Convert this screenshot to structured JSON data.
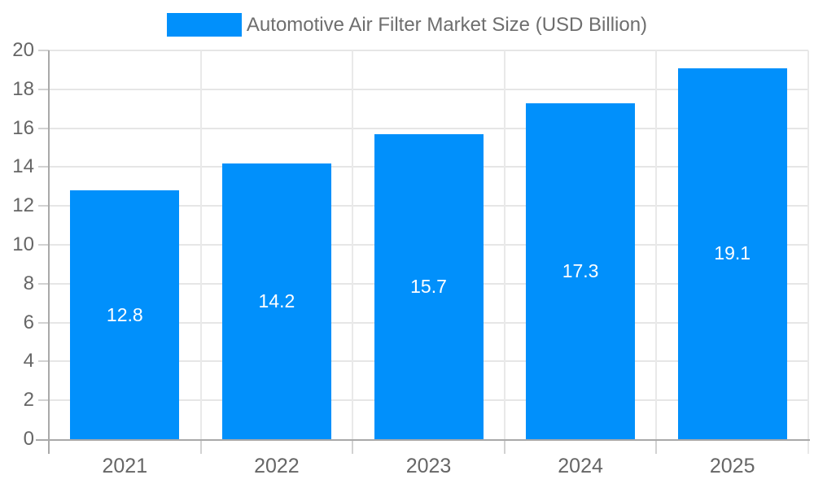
{
  "legend": {
    "label": "Automotive Air Filter Market Size (USD Billion)",
    "swatch_color": "#0190fb",
    "position": "top"
  },
  "chart_data": {
    "type": "bar",
    "title": "Automotive Air Filter Market Size (USD Billion)",
    "categories": [
      "2021",
      "2022",
      "2023",
      "2024",
      "2025"
    ],
    "values": [
      12.8,
      14.2,
      15.7,
      17.3,
      19.1
    ],
    "bar_labels": [
      "12.8",
      "14.2",
      "15.7",
      "17.3",
      "19.1"
    ],
    "xlabel": "",
    "ylabel": "",
    "ylim": [
      0,
      20
    ],
    "yticks": [
      0,
      2,
      4,
      6,
      8,
      10,
      12,
      14,
      16,
      18,
      20
    ],
    "grid": true,
    "legend_position": "top",
    "colors": {
      "bar": "#0190fb",
      "bar_label": "#ffffff",
      "axis_text": "#666666",
      "legend_text": "#6e6e6e",
      "gridline": "#e6e6e6",
      "axis_line": "#a9a9a9",
      "tick": "#d2d2d2",
      "background": "#ffffff"
    }
  }
}
